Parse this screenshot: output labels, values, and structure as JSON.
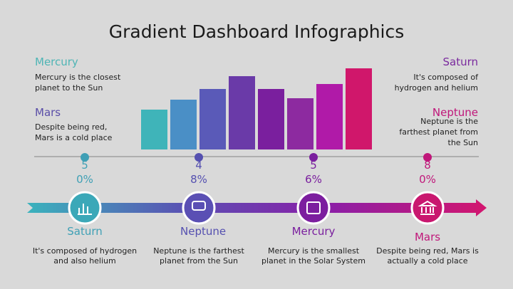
{
  "title": "Gradient Dashboard Infographics",
  "left_notes": [
    {
      "name": "Mercury",
      "text": "Mercury is the closest planet to the Sun"
    },
    {
      "name": "Mars",
      "text": "Despite being red, Mars is a cold place"
    }
  ],
  "right_notes": [
    {
      "name": "Saturn",
      "text": "It's composed of hydrogen and helium"
    },
    {
      "name": "Neptune",
      "text": "Neptune is the farthest planet from the Sun"
    }
  ],
  "percentages": [
    "50%",
    "48%",
    "56%",
    "80%"
  ],
  "timeline": [
    {
      "name": "Saturn",
      "text": "It's composed of hydrogen and also helium"
    },
    {
      "name": "Neptune",
      "text": "Neptune is the farthest planet from the Sun"
    },
    {
      "name": "Mercury",
      "text": "Mercury is the smallest planet in the Solar System"
    },
    {
      "name": "Mars",
      "text": "Despite being red, Mars is actually a cold place"
    }
  ]
}
